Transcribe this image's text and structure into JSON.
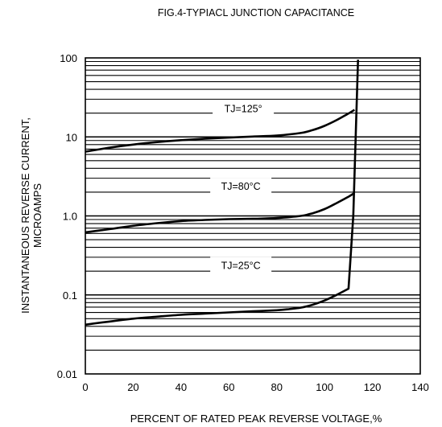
{
  "chart_data": {
    "type": "line",
    "title": "FIG.4-TYPIACL JUNCTION CAPACITANCE",
    "xlabel": "PERCENT OF RATED PEAK REVERSE VOLTAGE,%",
    "ylabel_line1": "INSTANTANEOUS REVERSE CURRENT,",
    "ylabel_line2": "MICROAMPS",
    "xscale": "linear",
    "yscale": "log",
    "xlim": [
      0,
      140
    ],
    "ylim": [
      0.01,
      100
    ],
    "x_ticks": [
      0,
      20,
      40,
      60,
      80,
      100,
      120,
      140
    ],
    "x_tick_labels": [
      "0",
      "20",
      "40",
      "60",
      "80",
      "100",
      "120",
      "140"
    ],
    "y_ticks": [
      0.01,
      0.1,
      1.0,
      10,
      100
    ],
    "y_tick_labels": [
      "0.01",
      "0.1",
      "1.0",
      "10",
      "100"
    ],
    "grid": "horizontal log minor lines",
    "series": [
      {
        "name": "TJ=125°",
        "x": [
          0,
          10,
          20,
          30,
          40,
          50,
          60,
          70,
          80,
          90,
          95,
          100,
          105,
          110,
          112.5
        ],
        "y": [
          6.5,
          7.3,
          8.0,
          8.6,
          9.1,
          9.5,
          9.8,
          10.1,
          10.4,
          11.2,
          12.2,
          13.8,
          16.3,
          19.8,
          22
        ]
      },
      {
        "name": "TJ=80°C",
        "x": [
          0,
          10,
          20,
          30,
          40,
          50,
          60,
          70,
          80,
          90,
          95,
          100,
          105,
          110,
          112.5
        ],
        "y": [
          0.62,
          0.68,
          0.75,
          0.81,
          0.86,
          0.89,
          0.91,
          0.92,
          0.94,
          1.0,
          1.08,
          1.22,
          1.45,
          1.75,
          1.95
        ]
      },
      {
        "name": "TJ=25°C",
        "x": [
          0,
          10,
          20,
          30,
          40,
          50,
          60,
          70,
          80,
          85,
          90,
          95,
          100,
          105,
          110,
          112,
          114
        ],
        "y": [
          0.042,
          0.046,
          0.05,
          0.053,
          0.056,
          0.058,
          0.06,
          0.062,
          0.064,
          0.066,
          0.069,
          0.075,
          0.085,
          0.1,
          0.12,
          1.0,
          95
        ]
      }
    ]
  }
}
